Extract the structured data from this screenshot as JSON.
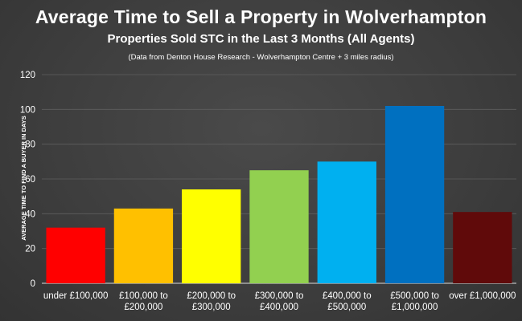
{
  "header": {
    "title": "Average Time to Sell a Property in Wolverhampton",
    "subtitle": "Properties Sold STC in the Last 3 Months (All Agents)",
    "note": "(Data from Denton House Research - Wolverhampton Centre + 3 miles radius)"
  },
  "chart_data": {
    "type": "bar",
    "title": "Average Time to Sell a Property in Wolverhampton",
    "subtitle": "Properties Sold STC in the Last 3 Months (All Agents)",
    "xlabel": "",
    "ylabel": "AVERAGE TIME TO FIND A BUYER IN DAYS",
    "ylim": [
      0,
      120
    ],
    "yticks": [
      0,
      20,
      40,
      60,
      80,
      100,
      120
    ],
    "grid": true,
    "categories": [
      [
        "under £100,000"
      ],
      [
        "£100,000 to",
        "£200,000"
      ],
      [
        "£200,000 to",
        "£300,000"
      ],
      [
        "£300,000 to",
        "£400,000"
      ],
      [
        "£400,000 to",
        "£500,000"
      ],
      [
        "£500,000 to",
        "£1,000,000"
      ],
      [
        "over £1,000,000"
      ]
    ],
    "values": [
      32,
      43,
      54,
      65,
      70,
      102,
      41
    ],
    "colors": [
      "#ff0000",
      "#ffc000",
      "#ffff00",
      "#92d050",
      "#00b0f0",
      "#0070c0",
      "#600a0a"
    ]
  }
}
